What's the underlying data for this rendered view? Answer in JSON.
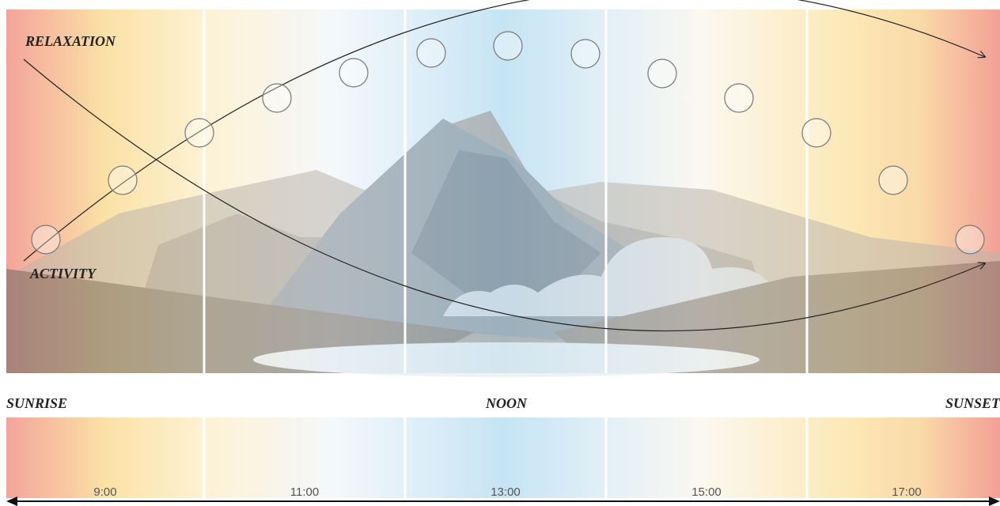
{
  "labels": {
    "relaxation": "RELAXATION",
    "activity": "ACTIVITY"
  },
  "timeline": {
    "start": "SUNRISE",
    "middle": "NOON",
    "end": "SUNSET",
    "times": [
      "9:00",
      "11:00",
      "13:00",
      "15:00",
      "17:00"
    ]
  }
}
